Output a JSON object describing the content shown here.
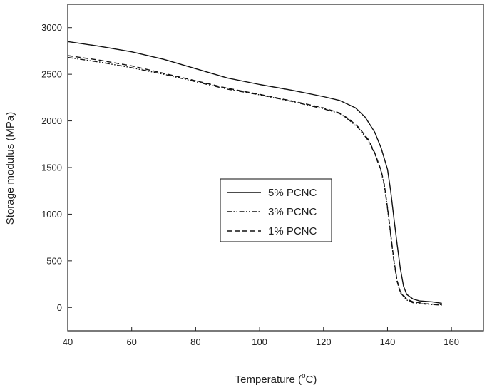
{
  "chart_data": {
    "type": "line",
    "title": "",
    "xlabel": "Temperature (°C)",
    "xlabel_main": "Temperature (",
    "xlabel_unit_sup": "o",
    "xlabel_unit_end": "C)",
    "ylabel": "Storage modulus (MPa)",
    "xlim": [
      40,
      170
    ],
    "ylim": [
      -250,
      3250
    ],
    "x_ticks": [
      40,
      60,
      80,
      100,
      120,
      140,
      160
    ],
    "y_ticks": [
      0,
      500,
      1000,
      1500,
      2000,
      2500,
      3000
    ],
    "legend_position": "center",
    "series": [
      {
        "name": "5% PCNC",
        "style": "solid",
        "x": [
          40,
          50,
          60,
          70,
          80,
          90,
          100,
          110,
          120,
          125,
          130,
          133,
          136,
          138,
          140,
          141,
          142,
          143,
          144,
          145,
          146,
          148,
          150,
          154,
          157
        ],
        "y": [
          2850,
          2800,
          2740,
          2660,
          2560,
          2460,
          2390,
          2330,
          2260,
          2220,
          2140,
          2040,
          1880,
          1710,
          1480,
          1250,
          960,
          680,
          420,
          230,
          140,
          90,
          70,
          60,
          45
        ]
      },
      {
        "name": "3% PCNC",
        "style": "dashdotdot",
        "x": [
          40,
          50,
          60,
          70,
          80,
          90,
          100,
          110,
          120,
          125,
          128,
          131,
          134,
          136,
          138,
          139,
          140,
          141,
          142,
          143,
          144,
          146,
          148,
          152,
          157
        ],
        "y": [
          2680,
          2630,
          2570,
          2500,
          2420,
          2340,
          2280,
          2210,
          2130,
          2080,
          2010,
          1920,
          1790,
          1650,
          1460,
          1310,
          1060,
          780,
          500,
          280,
          160,
          80,
          50,
          35,
          25
        ]
      },
      {
        "name": "1% PCNC",
        "style": "dashed",
        "x": [
          40,
          50,
          60,
          70,
          80,
          90,
          100,
          110,
          120,
          125,
          128,
          131,
          134,
          136,
          138,
          139,
          140,
          141,
          142,
          143,
          144,
          146,
          148,
          152,
          157
        ],
        "y": [
          2700,
          2650,
          2590,
          2510,
          2430,
          2350,
          2285,
          2215,
          2140,
          2085,
          2020,
          1930,
          1800,
          1660,
          1470,
          1320,
          1070,
          790,
          510,
          290,
          170,
          90,
          60,
          40,
          30
        ]
      }
    ]
  }
}
